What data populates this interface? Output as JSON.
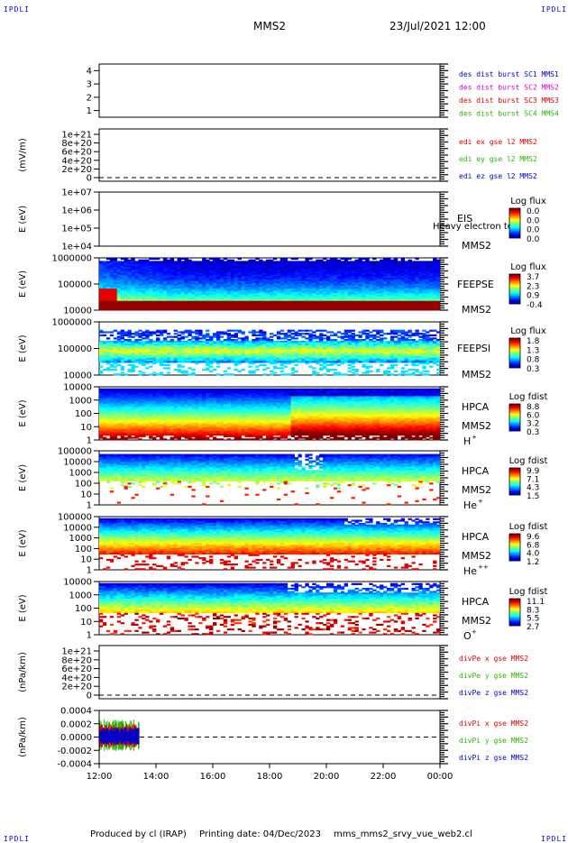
{
  "corner_tags": [
    "IPDLI",
    "IPDLI",
    "IPDLI",
    "IPDLI"
  ],
  "header": {
    "spacecraft": "MMS2",
    "datetime": "23/Jul/2021 12:00"
  },
  "footer": {
    "produced_by": "Produced by cl (IRAP)",
    "printing_date": "Printing date: 04/Dec/2023",
    "script": "mms_mms2_srvy_vue_web2.cl"
  },
  "colors": {
    "red": "#e00000",
    "green": "#22bb00",
    "blue": "#0000cc",
    "magenta": "#dd00dd"
  },
  "chart_data": [
    {
      "type": "line",
      "id": "p1",
      "ylabel": "",
      "yticks": [
        "1",
        "2",
        "3",
        "4"
      ],
      "ylim": [
        0.5,
        4.5
      ],
      "legend": [
        {
          "text": "des dist burst SC1 MMS1",
          "color": "blue"
        },
        {
          "text": "des dist burst SC2 MMS2",
          "color": "magenta"
        },
        {
          "text": "des dist burst SC3 MMS3",
          "color": "red"
        },
        {
          "text": "des dist burst SC4 MMS4",
          "color": "green"
        }
      ]
    },
    {
      "type": "line",
      "id": "p2",
      "ylabel": "(mV/m)",
      "yticks": [
        "1e+21",
        "8e+20",
        "6e+20",
        "4e+20",
        "2e+20",
        "0"
      ],
      "zero_dashed": true,
      "legend": [
        {
          "text": "edi ex gse l2 MMS2",
          "color": "red"
        },
        {
          "text": "edi ey gse l2 MMS2",
          "color": "green"
        },
        {
          "text": "edi ez gse l2 MMS2",
          "color": "blue"
        }
      ]
    },
    {
      "type": "heatmap",
      "id": "p3",
      "ylabel": "E (eV)",
      "yticks": [
        "1e+07",
        "1e+06",
        "1e+05",
        "1e+04"
      ],
      "instrument": "EIS",
      "sub": [
        "MMS2"
      ],
      "overlay": "Heavy electron to",
      "cbar_title": "Log flux",
      "cbar_ticks": [
        "0.0",
        "0.0",
        "0.0",
        "0.0"
      ]
    },
    {
      "type": "heatmap",
      "id": "p4",
      "ylabel": "E (eV)",
      "yticks": [
        "1000000",
        "100000",
        "10000"
      ],
      "instrument": "FEEPSE",
      "sub": [
        "MMS2"
      ],
      "cbar_title": "Log flux",
      "cbar_ticks": [
        "3.7",
        "2.3",
        "0.9",
        "-0.4"
      ]
    },
    {
      "type": "heatmap",
      "id": "p5",
      "ylabel": "E (eV)",
      "yticks": [
        "1000000",
        "100000",
        "10000"
      ],
      "instrument": "FEEPSI",
      "sub": [
        "MMS2"
      ],
      "cbar_title": "Log flux",
      "cbar_ticks": [
        "1.8",
        "1.3",
        "0.8",
        "0.3"
      ]
    },
    {
      "type": "heatmap",
      "id": "p6",
      "ylabel": "E (eV)",
      "yticks": [
        "10000",
        "1000",
        "100",
        "10",
        "1"
      ],
      "instrument": "HPCA",
      "sub": [
        "MMS2",
        "H",
        "+"
      ],
      "cbar_title": "Log fdist",
      "cbar_ticks": [
        "8.8",
        "6.0",
        "3.2",
        "0.3"
      ]
    },
    {
      "type": "heatmap",
      "id": "p7",
      "ylabel": "E (eV)",
      "yticks": [
        "100000",
        "10000",
        "1000",
        "100",
        "10",
        "1"
      ],
      "instrument": "HPCA",
      "sub": [
        "MMS2",
        "He",
        "+"
      ],
      "cbar_title": "Log fdist",
      "cbar_ticks": [
        "9.9",
        "7.1",
        "4.3",
        "1.5"
      ]
    },
    {
      "type": "heatmap",
      "id": "p8",
      "ylabel": "E (eV)",
      "yticks": [
        "100000",
        "10000",
        "1000",
        "100",
        "10",
        "1"
      ],
      "instrument": "HPCA",
      "sub": [
        "MMS2",
        "He",
        "++"
      ],
      "cbar_title": "Log fdist",
      "cbar_ticks": [
        "9.6",
        "6.8",
        "4.0",
        "1.2"
      ]
    },
    {
      "type": "heatmap",
      "id": "p9",
      "ylabel": "E (eV)",
      "yticks": [
        "10000",
        "1000",
        "100",
        "10",
        "1"
      ],
      "instrument": "HPCA",
      "sub": [
        "MMS2",
        "O",
        "+"
      ],
      "cbar_title": "Log fdist",
      "cbar_ticks": [
        "11.1",
        "8.3",
        "5.5",
        "2.7"
      ]
    },
    {
      "type": "line",
      "id": "p10",
      "ylabel": "(nPa/km)",
      "yticks": [
        "1e+21",
        "8e+20",
        "6e+20",
        "4e+20",
        "2e+20",
        "0"
      ],
      "zero_dashed": true,
      "legend": [
        {
          "text": "divPe x gse MMS2",
          "color": "red"
        },
        {
          "text": "divPe y gse MMS2",
          "color": "green"
        },
        {
          "text": "divPe z gse MMS2",
          "color": "blue"
        }
      ]
    },
    {
      "type": "line",
      "id": "p11",
      "ylabel": "(nPa/km)",
      "yticks": [
        "0.0004",
        "0.0002",
        "0.0000",
        "-0.0002",
        "-0.0004"
      ],
      "zero_dashed": true,
      "data_time_range": [
        "12:00",
        "13:25"
      ],
      "legend": [
        {
          "text": "divPi x gse MMS2",
          "color": "red"
        },
        {
          "text": "divPi y gse MMS2",
          "color": "green"
        },
        {
          "text": "divPi z gse MMS2",
          "color": "blue"
        }
      ]
    }
  ],
  "xaxis": {
    "ticks": [
      "12:00",
      "14:00",
      "16:00",
      "18:00",
      "20:00",
      "22:00",
      "00:00"
    ]
  }
}
